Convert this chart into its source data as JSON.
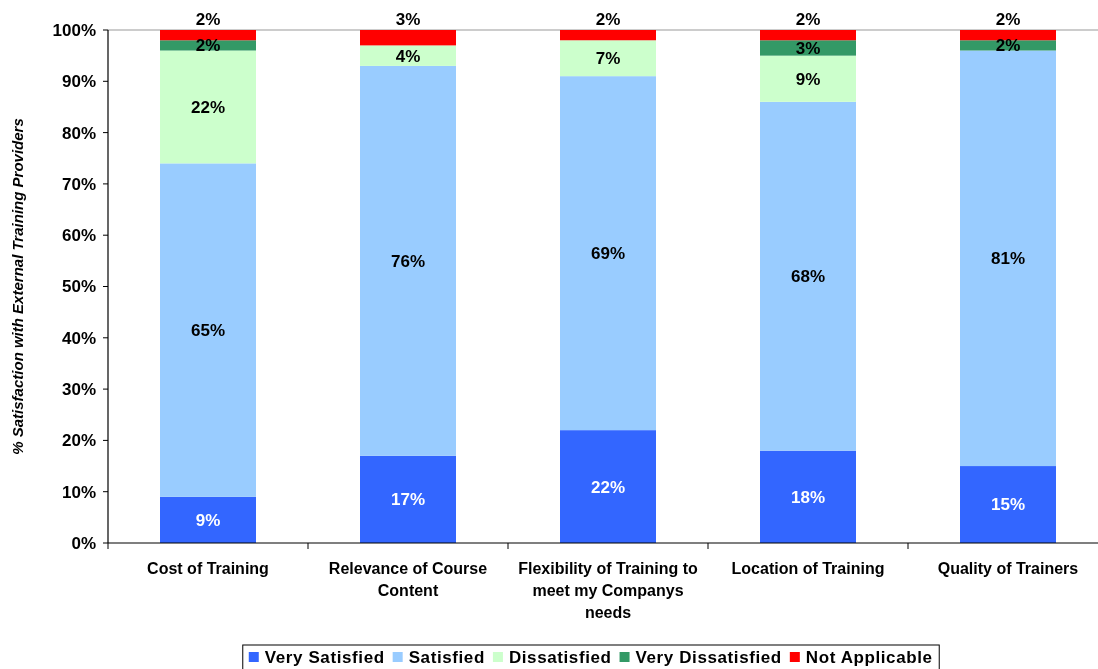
{
  "chart_data": {
    "type": "bar",
    "stacked": true,
    "categories": [
      "Cost of Training",
      "Relevance of Course Content",
      "Flexibility of Training to meet my Companys needs",
      "Location of Training",
      "Quality of Trainers"
    ],
    "series": [
      {
        "name": "Very Satisfied",
        "color": "#3366ff",
        "values": [
          9,
          17,
          22,
          18,
          15
        ],
        "value_labels": [
          "9%",
          "17%",
          "22%",
          "18%",
          "15%"
        ]
      },
      {
        "name": "Satisfied",
        "color": "#99ccff",
        "values": [
          65,
          76,
          69,
          68,
          81
        ],
        "value_labels": [
          "65%",
          "76%",
          "69%",
          "68%",
          "81%"
        ]
      },
      {
        "name": "Dissatisfied",
        "color": "#ccffcc",
        "values": [
          22,
          4,
          7,
          9,
          0
        ],
        "value_labels": [
          "22%",
          "4%",
          "7%",
          "9%",
          null
        ]
      },
      {
        "name": "Very Dissatisfied",
        "color": "#339966",
        "values": [
          2,
          0,
          0,
          3,
          2
        ],
        "value_labels": [
          "2%",
          null,
          null,
          "3%",
          "2%"
        ]
      },
      {
        "name": "Not Applicable",
        "color": "#ff0000",
        "values": [
          2,
          3,
          2,
          2,
          2
        ],
        "value_labels": [
          "2%",
          "3%",
          "2%",
          "2%",
          "2%"
        ]
      }
    ],
    "ylabel": "% Satisfaction with External Training Providers",
    "ylim": [
      0,
      100
    ],
    "yticks": [
      {
        "value": 0,
        "label": "0%"
      },
      {
        "value": 10,
        "label": "10%"
      },
      {
        "value": 20,
        "label": "20%"
      },
      {
        "value": 30,
        "label": "30%"
      },
      {
        "value": 40,
        "label": "40%"
      },
      {
        "value": 50,
        "label": "50%"
      },
      {
        "value": 60,
        "label": "60%"
      },
      {
        "value": 70,
        "label": "70%"
      },
      {
        "value": 80,
        "label": "80%"
      },
      {
        "value": 90,
        "label": "90%"
      },
      {
        "value": 100,
        "label": "100%"
      }
    ],
    "legend": "bottom"
  }
}
